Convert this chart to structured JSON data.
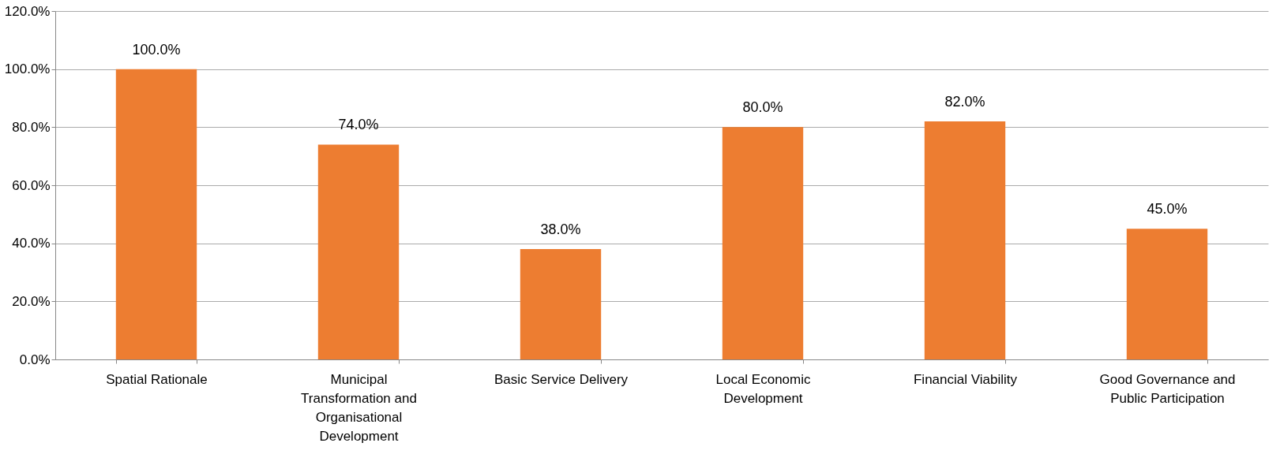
{
  "chart_data": {
    "type": "bar",
    "categories": [
      "Spatial Rationale",
      "Municipal Transformation and Organisational Development",
      "Basic Service Delivery",
      "Local Economic Development",
      "Financial Viability",
      "Good Governance and Public Participation"
    ],
    "values": [
      100,
      74,
      38,
      80,
      82,
      45
    ],
    "value_labels": [
      "100.0%",
      "74.0%",
      "38.0%",
      "80.0%",
      "82.0%",
      "45.0%"
    ],
    "color": "#ed7d31",
    "ylim": [
      0,
      120
    ],
    "yticks": [
      {
        "value": 0,
        "label": "0.0%"
      },
      {
        "value": 20,
        "label": "20.0%"
      },
      {
        "value": 40,
        "label": "40.0%"
      },
      {
        "value": 60,
        "label": "60.0%"
      },
      {
        "value": 80,
        "label": "80.0%"
      },
      {
        "value": 100,
        "label": "100.0%"
      },
      {
        "value": 120,
        "label": "120.0%"
      }
    ],
    "grid": "y"
  }
}
